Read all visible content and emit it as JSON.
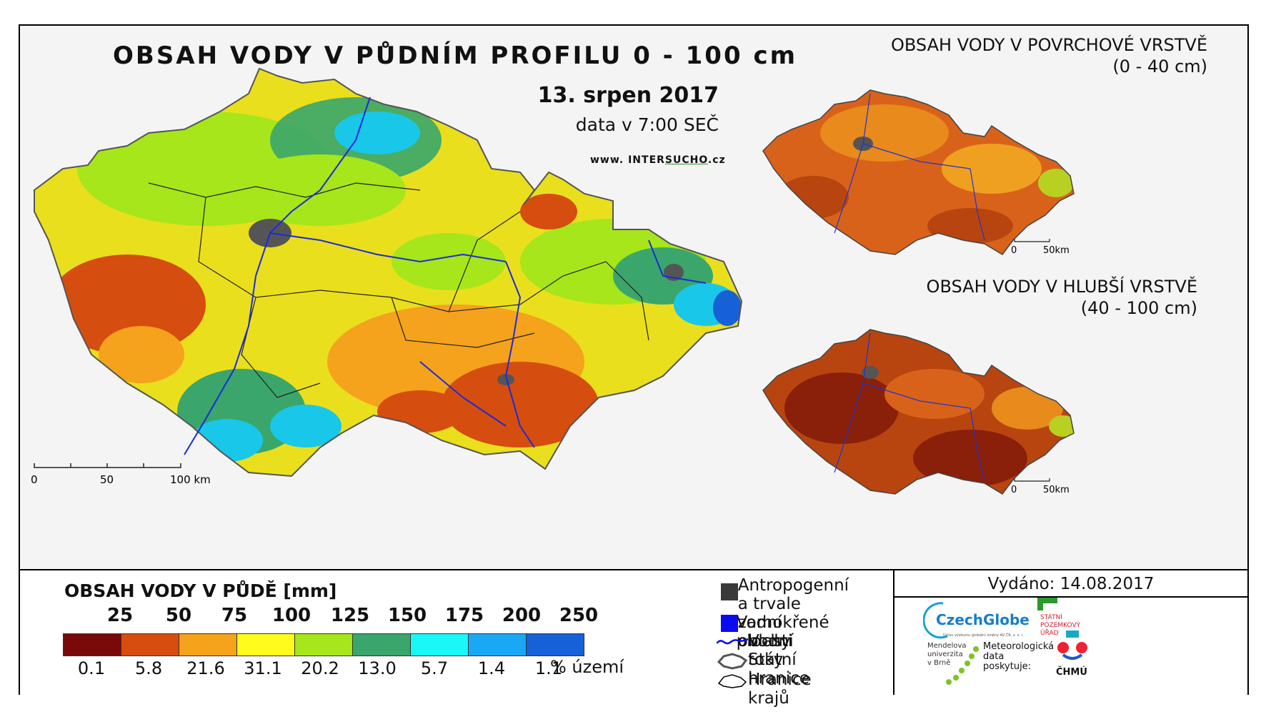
{
  "title": "OBSAH VODY V PŮDNÍM PROFILU 0 - 100 cm",
  "date": "13. srpen 2017",
  "time_note": "data v 7:00 SEČ",
  "website_prefix": "www. INTER",
  "website_mid": "SUCHO",
  "website_suffix": ".cz",
  "main_scale": {
    "labels": [
      "0",
      "50",
      "100 km"
    ]
  },
  "surface_map": {
    "title_line1": "OBSAH VODY V POVRCHOVÉ VRSTVĚ",
    "title_line2": "(0 - 40 cm)",
    "scale_labels": [
      "0",
      "50km"
    ]
  },
  "deep_map": {
    "title_line1": "OBSAH VODY V HLUBŠÍ VRSTVĚ",
    "title_line2": "(40 - 100 cm)",
    "scale_labels": [
      "0",
      "50km"
    ]
  },
  "legend": {
    "title": "OBSAH VODY V PŮDĚ [mm]",
    "thresholds": [
      "25",
      "50",
      "75",
      "100",
      "125",
      "150",
      "175",
      "200",
      "250"
    ],
    "colors": [
      "#7a0a0a",
      "#d54d0f",
      "#f5a21c",
      "#fffb1c",
      "#a6e61a",
      "#3aa66b",
      "#19f7f7",
      "#1aa8f5",
      "#1660d8"
    ],
    "percentages": [
      "0.1",
      "5.8",
      "21.6",
      "31.1",
      "20.2",
      "13.0",
      "5.7",
      "1.4",
      "1.1"
    ],
    "percent_unit": "% území"
  },
  "key": {
    "anthropogenic_line1": "Antropogenní a trvale",
    "anthropogenic_line2": "zamokřené oblasti",
    "water_bodies": "Vodní plochy",
    "rivers": "Vodní toky",
    "state_border": "Státní hranice",
    "regions_border": "Hranice krajů"
  },
  "issued": "Vydáno: 14.08.2017",
  "logos": {
    "czechglobe": "CzechGlobe",
    "czechglobe_sub": "Ústav výzkumu globální změny AV ČR, v. v. i.",
    "spu_line1": "STÁTNÍ",
    "spu_line2": "POZEMKOVÝ",
    "spu_line3": "ÚŘAD",
    "mendel_line1": "Mendelova",
    "mendel_line2": "univerzita",
    "mendel_line3": "v Brně",
    "meteo_line1": "Meteorologická",
    "meteo_line2": "data",
    "meteo_line3": "poskytuje:",
    "chmu": "ČHMÚ"
  }
}
